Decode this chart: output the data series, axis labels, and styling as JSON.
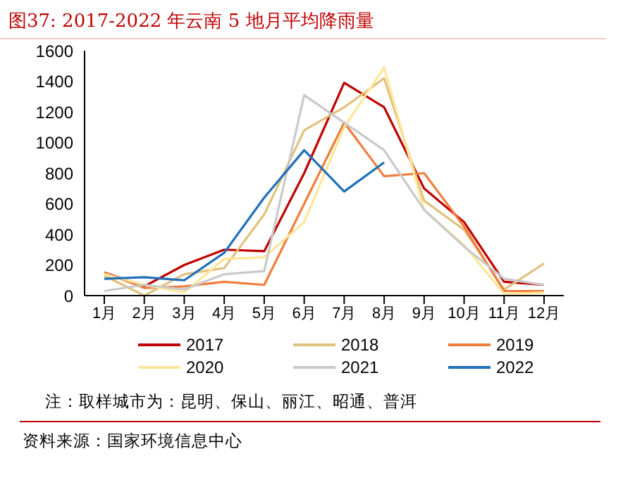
{
  "chart_data": {
    "type": "line",
    "title": "图37:    2017-2022 年云南 5 地月平均降雨量",
    "categories": [
      "1月",
      "2月",
      "3月",
      "4月",
      "5月",
      "6月",
      "7月",
      "8月",
      "9月",
      "10月",
      "11月",
      "12月"
    ],
    "series": [
      {
        "name": "2017",
        "color": "#c00000",
        "values": [
          150,
          60,
          200,
          300,
          290,
          800,
          1390,
          1230,
          700,
          480,
          90,
          70
        ]
      },
      {
        "name": "2018",
        "color": "#dfc27d",
        "values": [
          130,
          0,
          140,
          180,
          530,
          1080,
          1230,
          1420,
          620,
          430,
          40,
          210
        ]
      },
      {
        "name": "2019",
        "color": "#ef7d3c",
        "values": [
          150,
          50,
          60,
          90,
          70,
          600,
          1130,
          780,
          800,
          450,
          30,
          30
        ]
      },
      {
        "name": "2020",
        "color": "#ffe699",
        "values": [
          140,
          70,
          20,
          240,
          250,
          480,
          1100,
          1490,
          560,
          330,
          10,
          20
        ]
      },
      {
        "name": "2021",
        "color": "#c9c9c9",
        "values": [
          30,
          70,
          40,
          140,
          160,
          1310,
          1130,
          950,
          560,
          320,
          110,
          70
        ]
      },
      {
        "name": "2022",
        "color": "#1f6fb9",
        "values": [
          110,
          120,
          100,
          280,
          640,
          950,
          680,
          870,
          null,
          null,
          null,
          null
        ]
      }
    ],
    "ylim": [
      0,
      1600
    ],
    "yticks": [
      0,
      200,
      400,
      600,
      800,
      1000,
      1200,
      1400,
      1600
    ],
    "grid": false,
    "legend": "bottom",
    "marker": "none",
    "line_style": "solid",
    "annotations": [
      "注：取样城市为：昆明、保山、丽江、昭通、普洱",
      "资料来源：国家环境信息中心"
    ]
  }
}
